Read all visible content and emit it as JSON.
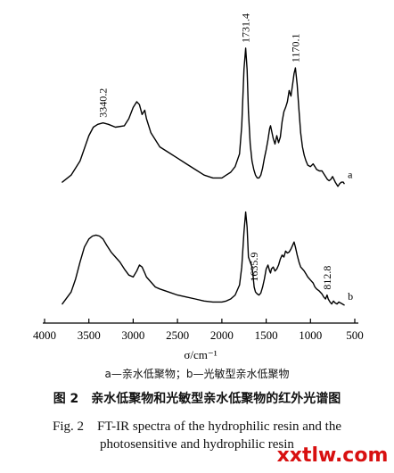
{
  "chart_data": {
    "type": "line",
    "xlabel": "σ/cm⁻¹",
    "x_ticks": [
      4000,
      3500,
      3000,
      2500,
      2000,
      1500,
      1000,
      500
    ],
    "xlim": [
      4000,
      500
    ],
    "x_reversed": true,
    "grid": false,
    "series": [
      {
        "name": "a",
        "x": [
          3800,
          3700,
          3600,
          3500,
          3450,
          3400,
          3340,
          3280,
          3200,
          3100,
          3050,
          3000,
          2960,
          2930,
          2900,
          2870,
          2850,
          2800,
          2700,
          2600,
          2500,
          2400,
          2300,
          2200,
          2100,
          2000,
          1950,
          1900,
          1850,
          1800,
          1775,
          1750,
          1731,
          1715,
          1700,
          1680,
          1660,
          1640,
          1620,
          1600,
          1580,
          1560,
          1540,
          1520,
          1500,
          1480,
          1460,
          1450,
          1440,
          1420,
          1400,
          1380,
          1360,
          1340,
          1320,
          1300,
          1280,
          1260,
          1240,
          1220,
          1200,
          1185,
          1170,
          1150,
          1130,
          1110,
          1090,
          1070,
          1050,
          1030,
          1000,
          970,
          950,
          930,
          900,
          870,
          850,
          830,
          810,
          790,
          770,
          750,
          720,
          700,
          690,
          670,
          650,
          630,
          620
        ],
        "y": [
          0.05,
          0.1,
          0.2,
          0.38,
          0.44,
          0.46,
          0.47,
          0.46,
          0.44,
          0.45,
          0.5,
          0.58,
          0.62,
          0.6,
          0.53,
          0.56,
          0.5,
          0.4,
          0.3,
          0.26,
          0.22,
          0.18,
          0.14,
          0.1,
          0.08,
          0.08,
          0.1,
          0.12,
          0.16,
          0.25,
          0.45,
          0.85,
          1.0,
          0.85,
          0.55,
          0.32,
          0.2,
          0.14,
          0.1,
          0.08,
          0.08,
          0.1,
          0.15,
          0.22,
          0.28,
          0.35,
          0.43,
          0.45,
          0.42,
          0.36,
          0.32,
          0.38,
          0.33,
          0.37,
          0.48,
          0.55,
          0.58,
          0.62,
          0.7,
          0.66,
          0.75,
          0.82,
          0.86,
          0.74,
          0.56,
          0.4,
          0.3,
          0.24,
          0.2,
          0.17,
          0.16,
          0.18,
          0.16,
          0.14,
          0.13,
          0.13,
          0.11,
          0.09,
          0.07,
          0.06,
          0.07,
          0.09,
          0.05,
          0.03,
          0.02,
          0.04,
          0.05,
          0.05,
          0.04
        ]
      },
      {
        "name": "b",
        "x": [
          3800,
          3700,
          3650,
          3600,
          3550,
          3500,
          3460,
          3420,
          3380,
          3340,
          3300,
          3250,
          3200,
          3150,
          3100,
          3050,
          3000,
          2960,
          2930,
          2900,
          2870,
          2850,
          2800,
          2750,
          2700,
          2600,
          2500,
          2400,
          2300,
          2200,
          2100,
          2000,
          1950,
          1900,
          1850,
          1800,
          1775,
          1750,
          1731,
          1715,
          1700,
          1680,
          1660,
          1650,
          1635,
          1620,
          1600,
          1580,
          1560,
          1540,
          1520,
          1500,
          1480,
          1460,
          1450,
          1440,
          1420,
          1400,
          1380,
          1360,
          1340,
          1320,
          1300,
          1280,
          1260,
          1240,
          1220,
          1200,
          1185,
          1170,
          1150,
          1130,
          1110,
          1090,
          1070,
          1050,
          1030,
          1000,
          970,
          950,
          930,
          900,
          870,
          850,
          830,
          813,
          800,
          780,
          760,
          740,
          720,
          700,
          680,
          660,
          640,
          620
        ],
        "y": [
          0.03,
          0.15,
          0.28,
          0.45,
          0.6,
          0.68,
          0.71,
          0.72,
          0.71,
          0.68,
          0.62,
          0.55,
          0.5,
          0.45,
          0.38,
          0.32,
          0.3,
          0.36,
          0.42,
          0.4,
          0.34,
          0.3,
          0.25,
          0.2,
          0.18,
          0.15,
          0.12,
          0.1,
          0.08,
          0.06,
          0.05,
          0.05,
          0.06,
          0.08,
          0.12,
          0.22,
          0.4,
          0.75,
          0.95,
          0.8,
          0.5,
          0.45,
          0.4,
          0.33,
          0.2,
          0.15,
          0.13,
          0.12,
          0.14,
          0.2,
          0.28,
          0.38,
          0.42,
          0.36,
          0.34,
          0.38,
          0.4,
          0.36,
          0.38,
          0.42,
          0.48,
          0.52,
          0.5,
          0.56,
          0.54,
          0.55,
          0.58,
          0.62,
          0.65,
          0.6,
          0.52,
          0.45,
          0.4,
          0.38,
          0.36,
          0.33,
          0.3,
          0.27,
          0.24,
          0.2,
          0.18,
          0.16,
          0.13,
          0.1,
          0.08,
          0.12,
          0.08,
          0.05,
          0.03,
          0.06,
          0.04,
          0.03,
          0.05,
          0.04,
          0.03,
          0.02
        ]
      }
    ],
    "annotations": [
      {
        "text": "3340.2",
        "x": 3340,
        "series": "a"
      },
      {
        "text": "1731.4",
        "x": 1731,
        "series": "a"
      },
      {
        "text": "1170.1",
        "x": 1170,
        "series": "a"
      },
      {
        "text": "1635.9",
        "x": 1636,
        "series": "b"
      },
      {
        "text": "812.8",
        "x": 813,
        "series": "b"
      }
    ]
  },
  "caption": {
    "legend": "a—亲水低聚物；b—光敏型亲水低聚物",
    "title_cn": "图 2　亲水低聚物和光敏型亲水低聚物的红外光谱图",
    "title_en_line1": "Fig. 2　FT-IR spectra of the hydrophilic resin and the",
    "title_en_line2": "photosensitive and hydrophilic resin"
  },
  "watermark": {
    "text": "xxtlw.com",
    "color": "#d81010"
  }
}
